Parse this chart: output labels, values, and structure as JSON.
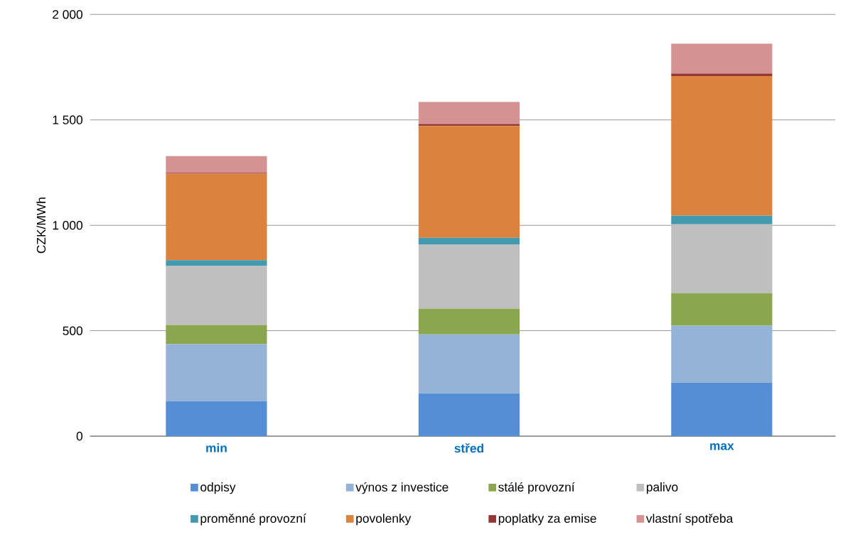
{
  "chart_data": {
    "type": "bar",
    "stacked": true,
    "ylabel": "CZK/MWh",
    "categories": [
      "min",
      "střed",
      "max"
    ],
    "series": [
      {
        "name": "odpisy",
        "color": "#558ed5",
        "values": [
          166,
          203,
          253
        ]
      },
      {
        "name": "výnos z investice",
        "color": "#95b3d7",
        "values": [
          270,
          280,
          271
        ]
      },
      {
        "name": "stálé provozní",
        "color": "#8aa64e",
        "values": [
          91,
          122,
          154
        ]
      },
      {
        "name": "palivo",
        "color": "#bfbfbf",
        "values": [
          280,
          303,
          327
        ]
      },
      {
        "name": "proměnné provozní",
        "color": "#4399ae",
        "values": [
          28,
          33,
          41
        ]
      },
      {
        "name": "povolenky",
        "color": "#db833e",
        "values": [
          410,
          530,
          662
        ]
      },
      {
        "name": "poplatky za emise",
        "color": "#953735",
        "values": [
          4,
          10,
          12
        ]
      },
      {
        "name": "vlastní spotřeba",
        "color": "#d49392",
        "values": [
          79,
          104,
          141
        ]
      }
    ],
    "ylim": [
      0,
      2000
    ],
    "yticks": [
      0,
      500,
      {
        "value": 1000,
        "label": "1 000"
      },
      {
        "value": 1500,
        "label": "1 500"
      },
      {
        "value": 2000,
        "label": "2 000"
      }
    ],
    "grid": "y",
    "legend": "bottom"
  }
}
